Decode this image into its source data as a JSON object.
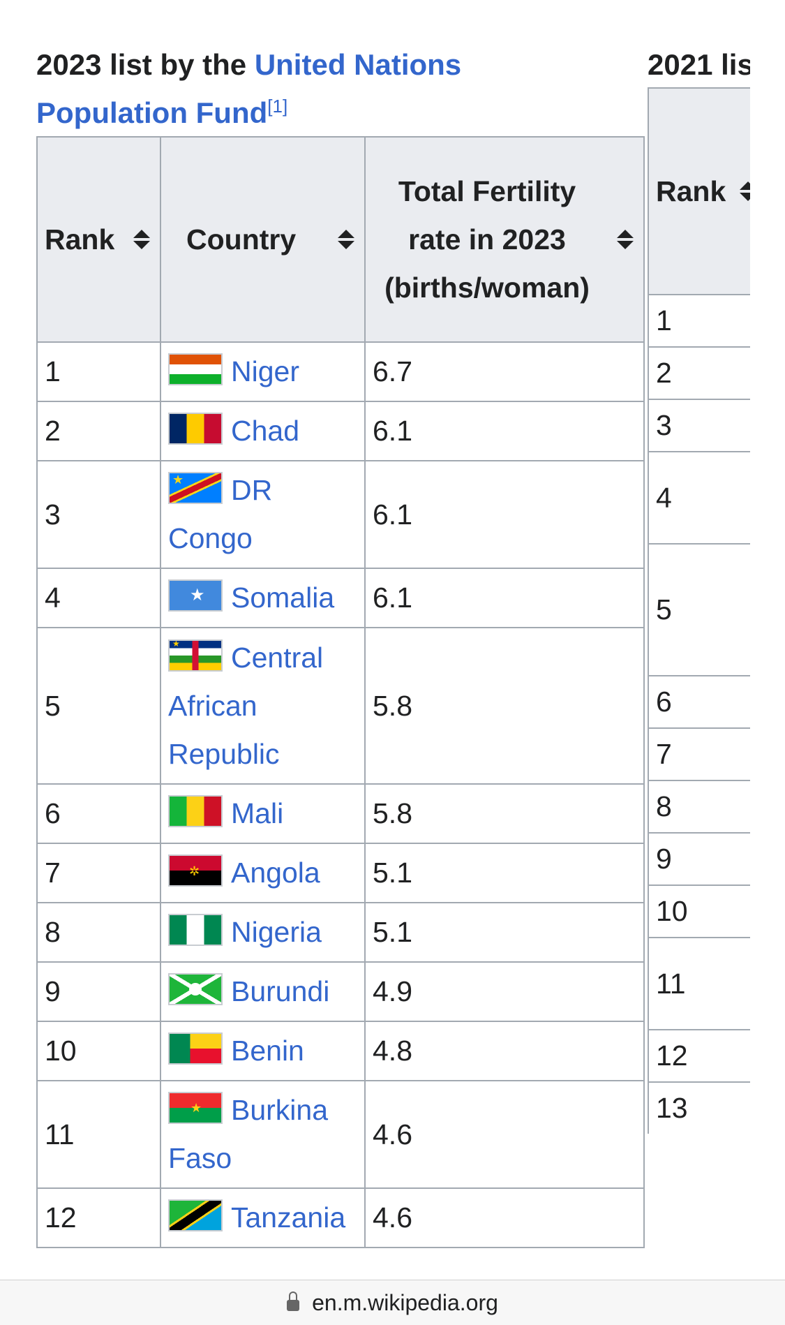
{
  "caption": {
    "prefix": "2023 list by the ",
    "link": "United Nations Population Fund",
    "ref": "[1]"
  },
  "table1": {
    "headers": [
      "Rank",
      "Country",
      "Total Fertility rate in 2023 (births/woman)"
    ],
    "rows": [
      {
        "rank": "1",
        "country": "Niger",
        "rate": "6.7",
        "flag": "niger-flag"
      },
      {
        "rank": "2",
        "country": "Chad",
        "rate": "6.1",
        "flag": "chad-flag"
      },
      {
        "rank": "3",
        "country": "DR Congo",
        "rate": "6.1",
        "flag": "dr-congo-flag"
      },
      {
        "rank": "4",
        "country": "Somalia",
        "rate": "6.1",
        "flag": "somalia-flag"
      },
      {
        "rank": "5",
        "country": "Central African Republic",
        "rate": "5.8",
        "flag": "car-flag"
      },
      {
        "rank": "6",
        "country": "Mali",
        "rate": "5.8",
        "flag": "mali-flag"
      },
      {
        "rank": "7",
        "country": "Angola",
        "rate": "5.1",
        "flag": "angola-flag"
      },
      {
        "rank": "8",
        "country": "Nigeria",
        "rate": "5.1",
        "flag": "nigeria-flag"
      },
      {
        "rank": "9",
        "country": "Burundi",
        "rate": "4.9",
        "flag": "burundi-flag"
      },
      {
        "rank": "10",
        "country": "Benin",
        "rate": "4.8",
        "flag": "benin-flag"
      },
      {
        "rank": "11",
        "country": "Burkina Faso",
        "rate": "4.6",
        "flag": "burkina-faso-flag"
      },
      {
        "rank": "12",
        "country": "Tanzania",
        "rate": "4.6",
        "flag": "tanzania-flag"
      }
    ]
  },
  "table2": {
    "caption": "2021 lis",
    "header": "Rank",
    "ranks": [
      "1",
      "2",
      "3",
      "4",
      "5",
      "6",
      "7",
      "8",
      "9",
      "10",
      "11",
      "12",
      "13"
    ]
  },
  "urlbar": {
    "url": "en.m.wikipedia.org"
  }
}
